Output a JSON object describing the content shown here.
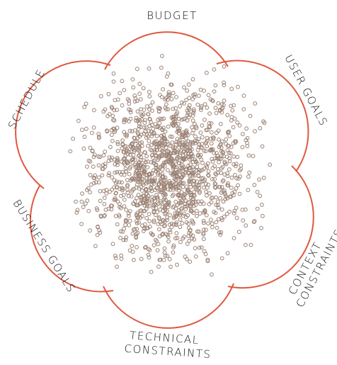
{
  "labels": [
    {
      "lines": [
        "BUDGET"
      ]
    },
    {
      "lines": [
        "USER GOALS"
      ]
    },
    {
      "lines": [
        "CONTEXT",
        "CONSTRAINTS"
      ]
    },
    {
      "lines": [
        "TECHNICAL",
        "CONSTRAINTS"
      ]
    },
    {
      "lines": [
        "BUSINESS GOALS"
      ]
    },
    {
      "lines": [
        "SCHEDULE"
      ]
    }
  ]
}
